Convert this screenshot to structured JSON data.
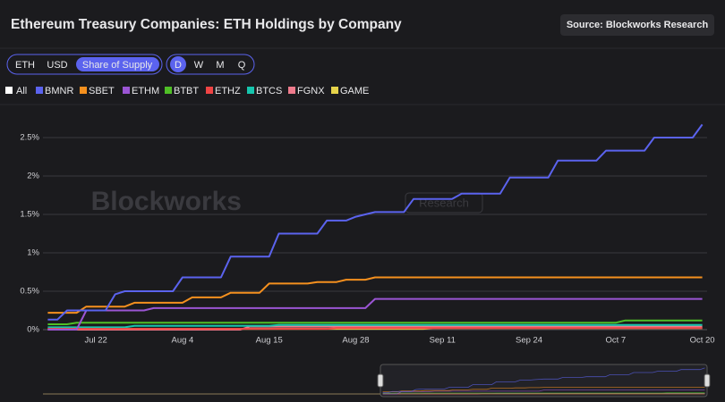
{
  "chart_data": {
    "type": "line",
    "title": "Ethereum Treasury Companies: ETH Holdings by Company",
    "source": "Source: Blockworks Research",
    "watermark": [
      "Blockworks",
      "Research"
    ],
    "categories": [
      null,
      null,
      null,
      null,
      null,
      "Jul 22",
      null,
      null,
      null,
      null,
      null,
      null,
      null,
      null,
      "Aug 4",
      null,
      null,
      null,
      null,
      null,
      null,
      null,
      null,
      "Aug 15",
      null,
      null,
      null,
      null,
      null,
      null,
      null,
      null,
      "Aug 28",
      null,
      null,
      null,
      null,
      null,
      null,
      null,
      null,
      "Sep 11",
      null,
      null,
      null,
      null,
      null,
      null,
      null,
      null,
      "Sep 24",
      null,
      null,
      null,
      null,
      null,
      null,
      null,
      null,
      "Oct 7",
      null,
      null,
      null,
      null,
      null,
      null,
      null,
      null,
      "Oct 20"
    ],
    "series": [
      {
        "name": "BMNR",
        "color": "#5b63ee",
        "values": [
          0.13,
          0.13,
          0.25,
          0.25,
          0.25,
          0.25,
          0.25,
          0.46,
          0.5,
          0.5,
          0.5,
          0.5,
          0.5,
          0.5,
          0.68,
          0.68,
          0.68,
          0.68,
          0.68,
          0.95,
          0.95,
          0.95,
          0.95,
          0.95,
          1.25,
          1.25,
          1.25,
          1.25,
          1.25,
          1.42,
          1.42,
          1.42,
          1.47,
          1.5,
          1.53,
          1.53,
          1.53,
          1.53,
          1.7,
          1.7,
          1.7,
          1.7,
          1.7,
          1.77,
          1.77,
          1.77,
          1.77,
          1.77,
          1.98,
          1.98,
          1.98,
          1.98,
          1.98,
          2.2,
          2.2,
          2.2,
          2.2,
          2.2,
          2.33,
          2.33,
          2.33,
          2.33,
          2.33,
          2.5,
          2.5,
          2.5,
          2.5,
          2.5,
          2.67
        ]
      },
      {
        "name": "SBET",
        "color": "#f5901e",
        "values": [
          0.22,
          0.22,
          0.22,
          0.22,
          0.3,
          0.3,
          0.3,
          0.3,
          0.3,
          0.35,
          0.35,
          0.35,
          0.35,
          0.35,
          0.35,
          0.42,
          0.42,
          0.42,
          0.42,
          0.48,
          0.48,
          0.48,
          0.48,
          0.6,
          0.6,
          0.6,
          0.6,
          0.6,
          0.62,
          0.62,
          0.62,
          0.65,
          0.65,
          0.65,
          0.68,
          0.68,
          0.68,
          0.68,
          0.68,
          0.68,
          0.68,
          0.68,
          0.68,
          0.68,
          0.68,
          0.68,
          0.68,
          0.68,
          0.68,
          0.68,
          0.68,
          0.68,
          0.68,
          0.68,
          0.68,
          0.68,
          0.68,
          0.68,
          0.68,
          0.68,
          0.68,
          0.68,
          0.68,
          0.68,
          0.68,
          0.68,
          0.68,
          0.68,
          0.68
        ]
      },
      {
        "name": "ETHM",
        "color": "#9b55d4",
        "values": [
          0,
          0,
          0,
          0,
          0.25,
          0.25,
          0.25,
          0.25,
          0.25,
          0.25,
          0.25,
          0.28,
          0.28,
          0.28,
          0.28,
          0.28,
          0.28,
          0.28,
          0.28,
          0.28,
          0.28,
          0.28,
          0.28,
          0.28,
          0.28,
          0.28,
          0.28,
          0.28,
          0.28,
          0.28,
          0.28,
          0.28,
          0.28,
          0.28,
          0.4,
          0.4,
          0.4,
          0.4,
          0.4,
          0.4,
          0.4,
          0.4,
          0.4,
          0.4,
          0.4,
          0.4,
          0.4,
          0.4,
          0.4,
          0.4,
          0.4,
          0.4,
          0.4,
          0.4,
          0.4,
          0.4,
          0.4,
          0.4,
          0.4,
          0.4,
          0.4,
          0.4,
          0.4,
          0.4,
          0.4,
          0.4,
          0.4,
          0.4,
          0.4
        ]
      },
      {
        "name": "BTBT",
        "color": "#4fbf26",
        "values": [
          0.07,
          0.07,
          0.07,
          0.09,
          0.09,
          0.09,
          0.09,
          0.09,
          0.09,
          0.09,
          0.09,
          0.09,
          0.09,
          0.09,
          0.09,
          0.09,
          0.09,
          0.09,
          0.09,
          0.09,
          0.09,
          0.09,
          0.09,
          0.09,
          0.09,
          0.09,
          0.09,
          0.09,
          0.09,
          0.09,
          0.09,
          0.09,
          0.09,
          0.09,
          0.09,
          0.09,
          0.09,
          0.09,
          0.09,
          0.09,
          0.09,
          0.09,
          0.09,
          0.09,
          0.09,
          0.09,
          0.09,
          0.09,
          0.09,
          0.09,
          0.09,
          0.09,
          0.09,
          0.09,
          0.09,
          0.09,
          0.09,
          0.09,
          0.09,
          0.09,
          0.12,
          0.12,
          0.12,
          0.12,
          0.12,
          0.12,
          0.12,
          0.12,
          0.12
        ]
      },
      {
        "name": "ETHZ",
        "color": "#ef4444",
        "values": [
          0.01,
          0.01,
          0.01,
          0.01,
          0.01,
          0.01,
          0.01,
          0.01,
          0.01,
          0.01,
          0.01,
          0.01,
          0.01,
          0.01,
          0.01,
          0.01,
          0.01,
          0.01,
          0.01,
          0.01,
          0.01,
          0.01,
          0.01,
          0.01,
          0.01,
          0.01,
          0.01,
          0.01,
          0.01,
          0.01,
          0.02,
          0.02,
          0.02,
          0.02,
          0.02,
          0.02,
          0.02,
          0.02,
          0.02,
          0.02,
          0.02,
          0.02,
          0.02,
          0.02,
          0.02,
          0.02,
          0.02,
          0.02,
          0.02,
          0.02,
          0.02,
          0.02,
          0.02,
          0.02,
          0.02,
          0.02,
          0.02,
          0.02,
          0.02,
          0.02,
          0.02,
          0.02,
          0.02,
          0.02,
          0.02,
          0.02,
          0.02,
          0.02,
          0.02
        ]
      },
      {
        "name": "BTCS",
        "color": "#16c5ad",
        "values": [
          0.03,
          0.03,
          0.03,
          0.03,
          0.03,
          0.03,
          0.03,
          0.03,
          0.03,
          0.05,
          0.05,
          0.05,
          0.05,
          0.05,
          0.05,
          0.05,
          0.05,
          0.05,
          0.05,
          0.05,
          0.05,
          0.05,
          0.05,
          0.05,
          0.06,
          0.06,
          0.06,
          0.06,
          0.06,
          0.06,
          0.06,
          0.06,
          0.06,
          0.06,
          0.06,
          0.06,
          0.06,
          0.06,
          0.06,
          0.06,
          0.06,
          0.06,
          0.06,
          0.06,
          0.06,
          0.06,
          0.06,
          0.06,
          0.06,
          0.06,
          0.06,
          0.06,
          0.06,
          0.06,
          0.06,
          0.06,
          0.06,
          0.06,
          0.06,
          0.06,
          0.06,
          0.06,
          0.06,
          0.06,
          0.06,
          0.06,
          0.06,
          0.06,
          0.06
        ]
      },
      {
        "name": "FGNX",
        "color": "#ee7b8c",
        "values": [
          0,
          0,
          0,
          0,
          0,
          0,
          0,
          0,
          0,
          0,
          0,
          0,
          0,
          0,
          0,
          0,
          0,
          0,
          0,
          0,
          0,
          0.04,
          0.04,
          0.04,
          0.04,
          0.04,
          0.04,
          0.04,
          0.04,
          0.04,
          0.04,
          0.04,
          0.04,
          0.04,
          0.04,
          0.04,
          0.04,
          0.04,
          0.04,
          0.04,
          0.04,
          0.04,
          0.04,
          0.04,
          0.04,
          0.04,
          0.04,
          0.04,
          0.04,
          0.04,
          0.04,
          0.04,
          0.04,
          0.04,
          0.04,
          0.04,
          0.04,
          0.04,
          0.04,
          0.04,
          0.04,
          0.04,
          0.04,
          0.04,
          0.04,
          0.04,
          0.04,
          0.04,
          0.04
        ]
      },
      {
        "name": "GAME",
        "color": "#e6d34a",
        "values": [
          0.01,
          0.01,
          0.01,
          0.01,
          0.01,
          0.01,
          0.01,
          0.01,
          0.01,
          0.01,
          0.01,
          0.01,
          0.01,
          0.01,
          0.01,
          0.01,
          0.01,
          0.01,
          0.01,
          0.01,
          0.01,
          0.01,
          0.01,
          0.01,
          0.01,
          0.01,
          0.01,
          0.01,
          0.01,
          0.01,
          0.01,
          0.01,
          0.01,
          0.01,
          0.01,
          0.01,
          0.01,
          0.01,
          0.01,
          0.01,
          0.02,
          0.02,
          0.02,
          0.02,
          0.02,
          0.02,
          0.02,
          0.02,
          0.02,
          0.02,
          0.02,
          0.02,
          0.02,
          0.02,
          0.02,
          0.02,
          0.02,
          0.02,
          0.02,
          0.02,
          0.02,
          0.02,
          0.02,
          0.02,
          0.02,
          0.02,
          0.02,
          0.02,
          0.02
        ]
      }
    ],
    "ylim": [
      0,
      2.75
    ],
    "yticks": [
      {
        "value": 0,
        "label": "0%"
      },
      {
        "value": 0.5,
        "label": "0.5%"
      },
      {
        "value": 1,
        "label": "1%"
      },
      {
        "value": 1.5,
        "label": "1.5%"
      },
      {
        "value": 2,
        "label": "2%"
      },
      {
        "value": 2.5,
        "label": "2.5%"
      }
    ],
    "grid": true
  },
  "controls": {
    "units": [
      "ETH",
      "USD",
      "Share of Supply"
    ],
    "active_unit": 2,
    "periods": [
      "D",
      "W",
      "M",
      "Q"
    ],
    "active_period": 0,
    "legend_all": "All"
  }
}
